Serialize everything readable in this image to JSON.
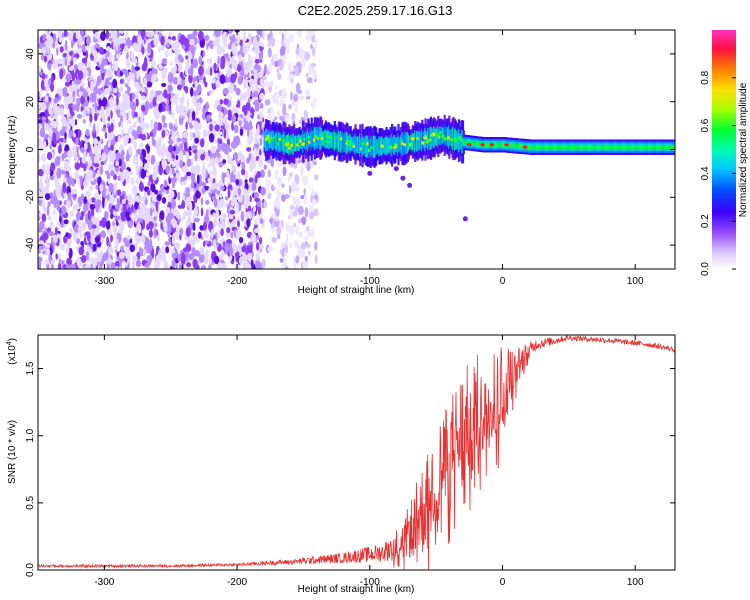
{
  "figure": {
    "title": "C2E2.2025.259.17.16.G13"
  },
  "chart_data": [
    {
      "type": "heatmap",
      "title": "C2E2.2025.259.17.16.G13",
      "xlabel": "Height of straight line (km)",
      "ylabel": "Frequency (Hz)",
      "xlim": [
        -350,
        130
      ],
      "ylim": [
        -50,
        50
      ],
      "x_ticks": [
        -300,
        -200,
        -100,
        0,
        100
      ],
      "x_tick_labels": [
        "-300",
        "-200",
        "-100",
        "0",
        "100"
      ],
      "y_ticks": [
        -40,
        -20,
        0,
        20,
        40
      ],
      "y_tick_labels": [
        "-40",
        "-20",
        "0",
        "20",
        "40"
      ],
      "colorbar": {
        "label": "Normalized spectral amplitude",
        "range": [
          0,
          1
        ],
        "ticks": [
          0,
          0.2,
          0.4,
          0.6,
          0.8
        ],
        "tick_labels": [
          "0.0",
          "0.2",
          "0.4",
          "0.6",
          "0.8"
        ],
        "colormap": [
          "#ffffff",
          "#b48cff",
          "#7a1fe0",
          "#2b00ff",
          "#00a0ff",
          "#00e0d0",
          "#00ff40",
          "#c0ff00",
          "#ffd000",
          "#ff6000",
          "#ff0040",
          "#ff00ff"
        ]
      },
      "regions": [
        {
          "name": "noise",
          "x_range": [
            -350,
            -180
          ],
          "freq_range": [
            -50,
            50
          ],
          "amplitude": 0.08
        },
        {
          "name": "noise-fade",
          "x_range": [
            -180,
            -140
          ],
          "freq_range": [
            -50,
            50
          ],
          "amplitude": 0.04
        },
        {
          "name": "signal-onset",
          "x_range": [
            -180,
            -30
          ],
          "freq_center": 2,
          "freq_halfwidth": 7,
          "amplitude": 0.4
        },
        {
          "name": "signal-strong",
          "x_range": [
            -30,
            130
          ],
          "freq_center": 1,
          "freq_halfwidth": 3,
          "amplitude": 0.55
        }
      ],
      "signal_track": [
        {
          "x": -175,
          "f": 4
        },
        {
          "x": -160,
          "f": 2
        },
        {
          "x": -140,
          "f": 5
        },
        {
          "x": -120,
          "f": 3
        },
        {
          "x": -100,
          "f": 1
        },
        {
          "x": -80,
          "f": 2
        },
        {
          "x": -60,
          "f": 4
        },
        {
          "x": -45,
          "f": 6
        },
        {
          "x": -30,
          "f": 3
        },
        {
          "x": -15,
          "f": 2
        },
        {
          "x": 0,
          "f": 2
        },
        {
          "x": 20,
          "f": 1
        },
        {
          "x": 60,
          "f": 1
        },
        {
          "x": 100,
          "f": 1
        },
        {
          "x": 130,
          "f": 1
        }
      ],
      "peak_points": [
        {
          "x": -25,
          "f": 2
        },
        {
          "x": -15,
          "f": 2
        },
        {
          "x": -8,
          "f": 2
        },
        {
          "x": 3,
          "f": 2
        },
        {
          "x": 17,
          "f": 1
        }
      ],
      "scatter_features": [
        {
          "x": -80,
          "f": -8
        },
        {
          "x": -75,
          "f": -12
        },
        {
          "x": -70,
          "f": -15
        },
        {
          "x": -100,
          "f": -10
        },
        {
          "x": -28,
          "f": -29
        }
      ]
    },
    {
      "type": "line",
      "xlabel": "Height of straight line (km)",
      "ylabel": "SNR (10 * v/v)",
      "y_scale_label": "(x10",
      "y_scale_exponent": "4",
      "y_scale_suffix": ")",
      "xlim": [
        -350,
        130
      ],
      "ylim": [
        0,
        1.75
      ],
      "x_ticks": [
        -300,
        -200,
        -100,
        0,
        100
      ],
      "x_tick_labels": [
        "-300",
        "-200",
        "-100",
        "0",
        "100"
      ],
      "y_ticks": [
        0,
        0.5,
        1.0,
        1.5
      ],
      "y_tick_labels": [
        "0.0",
        "0.5",
        "1.0",
        "1.5"
      ],
      "color": "#e83030",
      "series": [
        {
          "name": "SNR",
          "envelope": [
            {
              "x": -350,
              "y": 0.03,
              "noise": 0.01
            },
            {
              "x": -250,
              "y": 0.03,
              "noise": 0.01
            },
            {
              "x": -200,
              "y": 0.04,
              "noise": 0.01
            },
            {
              "x": -160,
              "y": 0.06,
              "noise": 0.02
            },
            {
              "x": -120,
              "y": 0.09,
              "noise": 0.04
            },
            {
              "x": -90,
              "y": 0.13,
              "noise": 0.07
            },
            {
              "x": -75,
              "y": 0.22,
              "noise": 0.14
            },
            {
              "x": -60,
              "y": 0.45,
              "noise": 0.35
            },
            {
              "x": -45,
              "y": 0.75,
              "noise": 0.45
            },
            {
              "x": -30,
              "y": 1.05,
              "noise": 0.45
            },
            {
              "x": -15,
              "y": 1.25,
              "noise": 0.4
            },
            {
              "x": 0,
              "y": 1.35,
              "noise": 0.35
            },
            {
              "x": 10,
              "y": 1.5,
              "noise": 0.15
            },
            {
              "x": 25,
              "y": 1.68,
              "noise": 0.04
            },
            {
              "x": 50,
              "y": 1.73,
              "noise": 0.02
            },
            {
              "x": 80,
              "y": 1.71,
              "noise": 0.02
            },
            {
              "x": 110,
              "y": 1.68,
              "noise": 0.02
            },
            {
              "x": 130,
              "y": 1.64,
              "noise": 0.02
            }
          ]
        }
      ]
    }
  ]
}
